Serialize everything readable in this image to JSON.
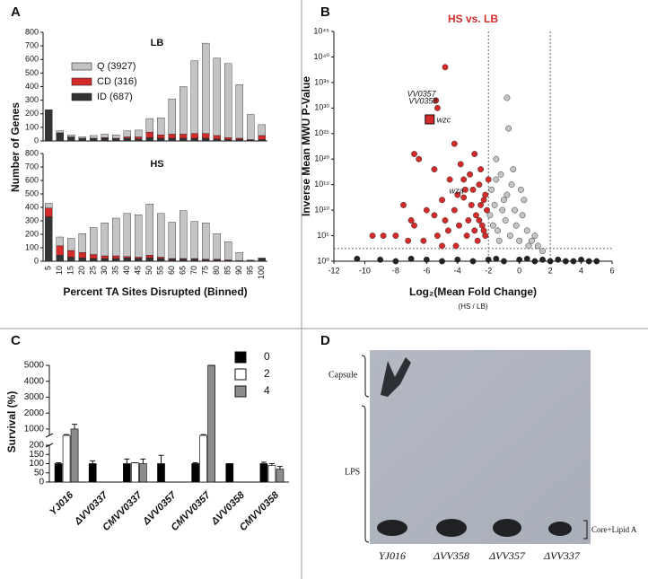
{
  "panel_labels": [
    "A",
    "B",
    "C",
    "D"
  ],
  "chart_data": [
    {
      "type": "stacked_bar_pair",
      "y_label": "Number of Genes",
      "x_label": "Percent TA Sites Disrupted (Binned)",
      "categories": [
        "5",
        "10",
        "15",
        "20",
        "25",
        "30",
        "35",
        "40",
        "45",
        "50",
        "55",
        "60",
        "65",
        "70",
        "75",
        "80",
        "85",
        "90",
        "95",
        "100"
      ],
      "ylim": [
        0,
        800
      ],
      "yticks": [
        0,
        100,
        200,
        300,
        400,
        500,
        600,
        700,
        800
      ],
      "panels": [
        {
          "title": "LB",
          "series": [
            {
              "name": "ID (687)",
              "color": "#333333",
              "values": [
                230,
                60,
                30,
                20,
                20,
                20,
                15,
                20,
                15,
                25,
                20,
                20,
                20,
                20,
                20,
                15,
                10,
                10,
                5,
                10
              ]
            },
            {
              "name": "CD (316)",
              "color": "#d42a2a",
              "values": [
                0,
                0,
                0,
                0,
                0,
                5,
                5,
                10,
                15,
                40,
                25,
                30,
                30,
                35,
                35,
                25,
                15,
                10,
                5,
                30
              ]
            },
            {
              "name": "Q (3927)",
              "color": "#c4c4c4",
              "values": [
                0,
                15,
                15,
                10,
                20,
                25,
                25,
                45,
                50,
                100,
                125,
                260,
                350,
                535,
                665,
                570,
                545,
                395,
                185,
                80
              ]
            }
          ]
        },
        {
          "title": "HS",
          "series": [
            {
              "color": "#333333",
              "values": [
                330,
                45,
                30,
                25,
                20,
                20,
                20,
                25,
                20,
                25,
                20,
                15,
                15,
                15,
                10,
                10,
                5,
                5,
                5,
                20
              ]
            },
            {
              "color": "#d42a2a",
              "values": [
                65,
                70,
                50,
                40,
                30,
                20,
                20,
                10,
                10,
                20,
                10,
                5,
                5,
                5,
                5,
                5,
                5,
                0,
                0,
                0
              ]
            },
            {
              "color": "#c4c4c4",
              "values": [
                35,
                65,
                90,
                140,
                200,
                245,
                280,
                320,
                315,
                380,
                325,
                270,
                355,
                275,
                270,
                190,
                135,
                60,
                5,
                5
              ]
            }
          ]
        }
      ]
    },
    {
      "type": "scatter",
      "title": "HS vs. LB",
      "title_color": "#d42a2a",
      "x_label": "Log₂(Mean Fold Change)",
      "x_sublabel": "(HS / LB)",
      "y_label": "Inverse Mean MWU P-Value",
      "xlim": [
        -12,
        6
      ],
      "xticks": [
        -12,
        -10,
        -8,
        -6,
        -4,
        -2,
        0,
        2,
        4,
        6
      ],
      "ylim": [
        1,
        1e+45
      ],
      "log_y": true,
      "yticks": [
        {
          "value": 1,
          "label": "10⁰"
        },
        {
          "value": 100000.0,
          "label": "10⁵"
        },
        {
          "value": 10000000000.0,
          "label": "10¹⁰"
        },
        {
          "value": 1000000000000000.0,
          "label": "10¹⁵"
        },
        {
          "value": 1e+20,
          "label": "10²⁰"
        },
        {
          "value": 1e+25,
          "label": "10²⁵"
        },
        {
          "value": 1e+30,
          "label": "10³⁰"
        },
        {
          "value": 1e+35,
          "label": "10³⁵"
        },
        {
          "value": 1e+40,
          "label": "10⁴⁰"
        },
        {
          "value": 1e+45,
          "label": "10⁴⁵"
        }
      ],
      "thresholds": {
        "x": [
          -2,
          2
        ],
        "y": 300
      },
      "series": [
        {
          "color": "#222222",
          "x": [
            -10.5,
            -9,
            -8,
            -7,
            -6,
            -5,
            -4,
            -3,
            -2,
            -1,
            0,
            1,
            2,
            2.5,
            3,
            3.5,
            4,
            4.5,
            5,
            -1.5,
            0.5,
            1.5
          ],
          "y": [
            3,
            2,
            1,
            3,
            2,
            1,
            2,
            1,
            2,
            1,
            2,
            1,
            1,
            2,
            1,
            1,
            2,
            1,
            1,
            3,
            3,
            2
          ]
        },
        {
          "color": "#c4c4c4",
          "x": [
            -0.8,
            -0.7,
            -1.5,
            -1.2,
            -0.5,
            -1.0,
            -0.3,
            0.2,
            -1.8,
            -0.9,
            0.5,
            0.8,
            1.2,
            -1.4,
            -0.6,
            0,
            1.5,
            -1.9,
            -0.2,
            0.3,
            -1.1,
            -1.6,
            -0.4,
            0.6,
            1.0,
            -1.3,
            -1.7,
            0.1,
            -0.8,
            -1.5
          ],
          "y": [
            1e+32,
            1e+26,
            1e+20,
            1e+17,
            1000000000000000.0,
            1000000000000.0,
            10000000000.0,
            1000000000.0,
            100000000000000.0,
            100000000.0,
            1000000.0,
            10000.0,
            1000.0,
            1000000.0,
            100000.0,
            10000.0,
            100.0,
            1000000000.0,
            10000000.0,
            1000000000000.0,
            10000000000.0,
            100000000000.0,
            1e+18,
            1000.0,
            100000.0,
            10000.0,
            10000000.0,
            100000000000000.0,
            10000000000000.0,
            1e+16
          ]
        },
        {
          "color": "#d42a2a",
          "x": [
            -4.8,
            -6.8,
            -6.5,
            -5.5,
            -4.2,
            -3.8,
            -4.5,
            -3.2,
            -2.9,
            -2.5,
            -3.5,
            -4.0,
            -5.0,
            -6.0,
            -7.0,
            -8.0,
            -8.8,
            -9.5,
            -7.5,
            -6.8,
            -5.5,
            -4.8,
            -4.2,
            -3.0,
            -2.6,
            -2.3,
            -2.1,
            -2.8,
            -3.3,
            -3.9,
            -4.6,
            -5.3,
            -6.2,
            -7.2,
            -2.4,
            -2.2,
            -2.7,
            -3.4,
            -4.1,
            -5.0,
            -2.5,
            -3.1,
            -2.2,
            -2.0,
            -3.6,
            -2.6,
            -2.3,
            -2.9
          ],
          "y": [
            1e+38,
            1e+21,
            1e+20,
            1e+18,
            1e+23,
            1e+19,
            1e+16,
            1e+17,
            1e+21,
            1e+18,
            100000000000000.0,
            10000000000000.0,
            1000000000000.0,
            10000000000.0,
            100000000.0,
            100000.0,
            100000.0,
            100000.0,
            100000000000.0,
            10000000.0,
            1000000000.0,
            100000000.0,
            10000000000.0,
            100000000000000.0,
            1000000000000000.0,
            1000000000000.0,
            10000000000.0,
            1000000000.0,
            100000000.0,
            10000000.0,
            1000000.0,
            100000.0,
            10000.0,
            10000.0,
            10000000.0,
            100000.0,
            10000.0,
            100000.0,
            1000.0,
            1000.0,
            100000000000.0,
            100000000000.0,
            10000000000000.0,
            1e+16,
            1e+16,
            100000000.0,
            1000000.0,
            1000000.0
          ]
        }
      ],
      "annotations": [
        {
          "text": "VV0357",
          "x": -5.4,
          "y": 3e+31,
          "marker": "point"
        },
        {
          "text": "VV0358",
          "x": -5.3,
          "y": 1e+30,
          "marker": "point"
        },
        {
          "text": "wzc",
          "x": -5.8,
          "y": 6e+27,
          "marker": "square"
        },
        {
          "text": "wza",
          "x": -3.6,
          "y": 3000000000000.0,
          "marker": "point"
        }
      ]
    },
    {
      "type": "grouped_bar",
      "y_label": "Survival (%)",
      "categories": [
        "YJ016",
        "ΔVV0337",
        "CMVV0337",
        "ΔVV0357",
        "CMVV0357",
        "ΔVV0358",
        "CMVV0358"
      ],
      "ylim": [
        0,
        5000
      ],
      "y_break": [
        200,
        600
      ],
      "yticks": [
        0,
        50,
        100,
        150,
        200,
        1000,
        2000,
        3000,
        4000,
        5000
      ],
      "series": [
        {
          "name": "0",
          "color": "#000000",
          "values": [
            100,
            100,
            100,
            100,
            100,
            100,
            100
          ],
          "errors": [
            5,
            15,
            25,
            45,
            5,
            0,
            8
          ]
        },
        {
          "name": "2",
          "color": "#ffffff",
          "values": [
            600,
            null,
            105,
            null,
            600,
            null,
            90
          ],
          "errors": [
            50,
            null,
            0,
            null,
            50,
            null,
            10
          ]
        },
        {
          "name": "4",
          "color": "#8c8c8c",
          "values": [
            1000,
            null,
            100,
            null,
            5000,
            null,
            70
          ],
          "errors": [
            300,
            null,
            25,
            null,
            0,
            null,
            15
          ]
        }
      ]
    }
  ],
  "panel_d": {
    "capsule": "Capsule",
    "lps": "LPS",
    "core": "Core+Lipid A",
    "lanes": [
      "YJ016",
      "ΔVV358",
      "ΔVV357",
      "ΔVV337"
    ]
  }
}
